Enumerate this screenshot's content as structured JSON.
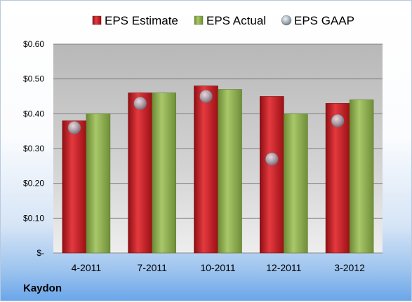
{
  "chart_data": {
    "type": "bar",
    "categories": [
      "4-2011",
      "7-2011",
      "10-2011",
      "12-2011",
      "3-2012"
    ],
    "series": [
      {
        "name": "EPS Estimate",
        "type": "bar",
        "color": "#c0181f",
        "values": [
          0.38,
          0.46,
          0.48,
          0.45,
          0.43
        ]
      },
      {
        "name": "EPS Actual",
        "type": "bar",
        "color": "#8fae4e",
        "values": [
          0.4,
          0.46,
          0.47,
          0.4,
          0.44
        ]
      },
      {
        "name": "EPS GAAP",
        "type": "marker",
        "color": "#9aa6b2",
        "values": [
          0.36,
          0.43,
          0.45,
          0.27,
          0.38
        ]
      }
    ],
    "yticks": [
      "$-",
      "$0.10",
      "$0.20",
      "$0.30",
      "$0.40",
      "$0.50",
      "$0.60"
    ],
    "ylim": [
      0,
      0.6
    ],
    "grid": true,
    "legend_position": "top"
  },
  "company": "Kaydon"
}
